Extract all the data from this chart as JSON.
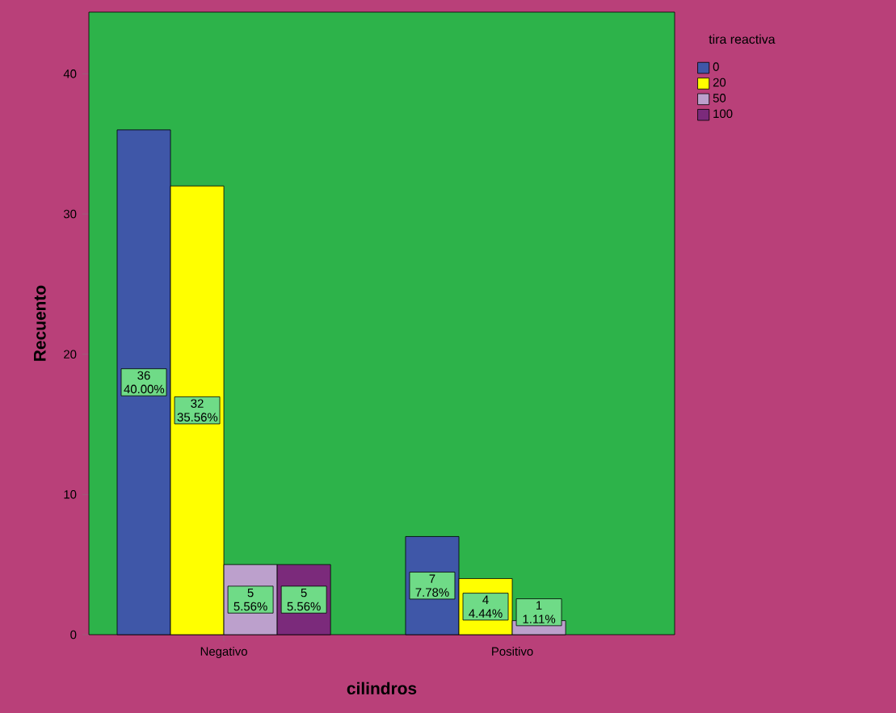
{
  "chart_data": {
    "type": "bar",
    "xlabel": "cilindros",
    "ylabel": "Recuento",
    "legend_title": "tira reactiva",
    "categories": [
      "Negativo",
      "Positivo"
    ],
    "series": [
      {
        "name": "0",
        "color": "#3f57a8",
        "values": [
          36,
          7
        ],
        "value_labels": [
          "36 40.00%",
          "7 7.78%"
        ]
      },
      {
        "name": "20",
        "color": "#ffff00",
        "values": [
          32,
          4
        ],
        "value_labels": [
          "32 35.56%",
          "4 4.44%"
        ]
      },
      {
        "name": "50",
        "color": "#bca0cc",
        "values": [
          5,
          1
        ],
        "value_labels": [
          "5 5.56%",
          "1 1.11%"
        ]
      },
      {
        "name": "100",
        "color": "#7b2a7b",
        "values": [
          5,
          null
        ],
        "value_labels": [
          "5 5.56%",
          null
        ]
      }
    ],
    "ylim": [
      0,
      44.4
    ],
    "yticks": [
      0,
      10,
      20,
      30,
      40
    ],
    "legend": "right",
    "grid": false
  }
}
